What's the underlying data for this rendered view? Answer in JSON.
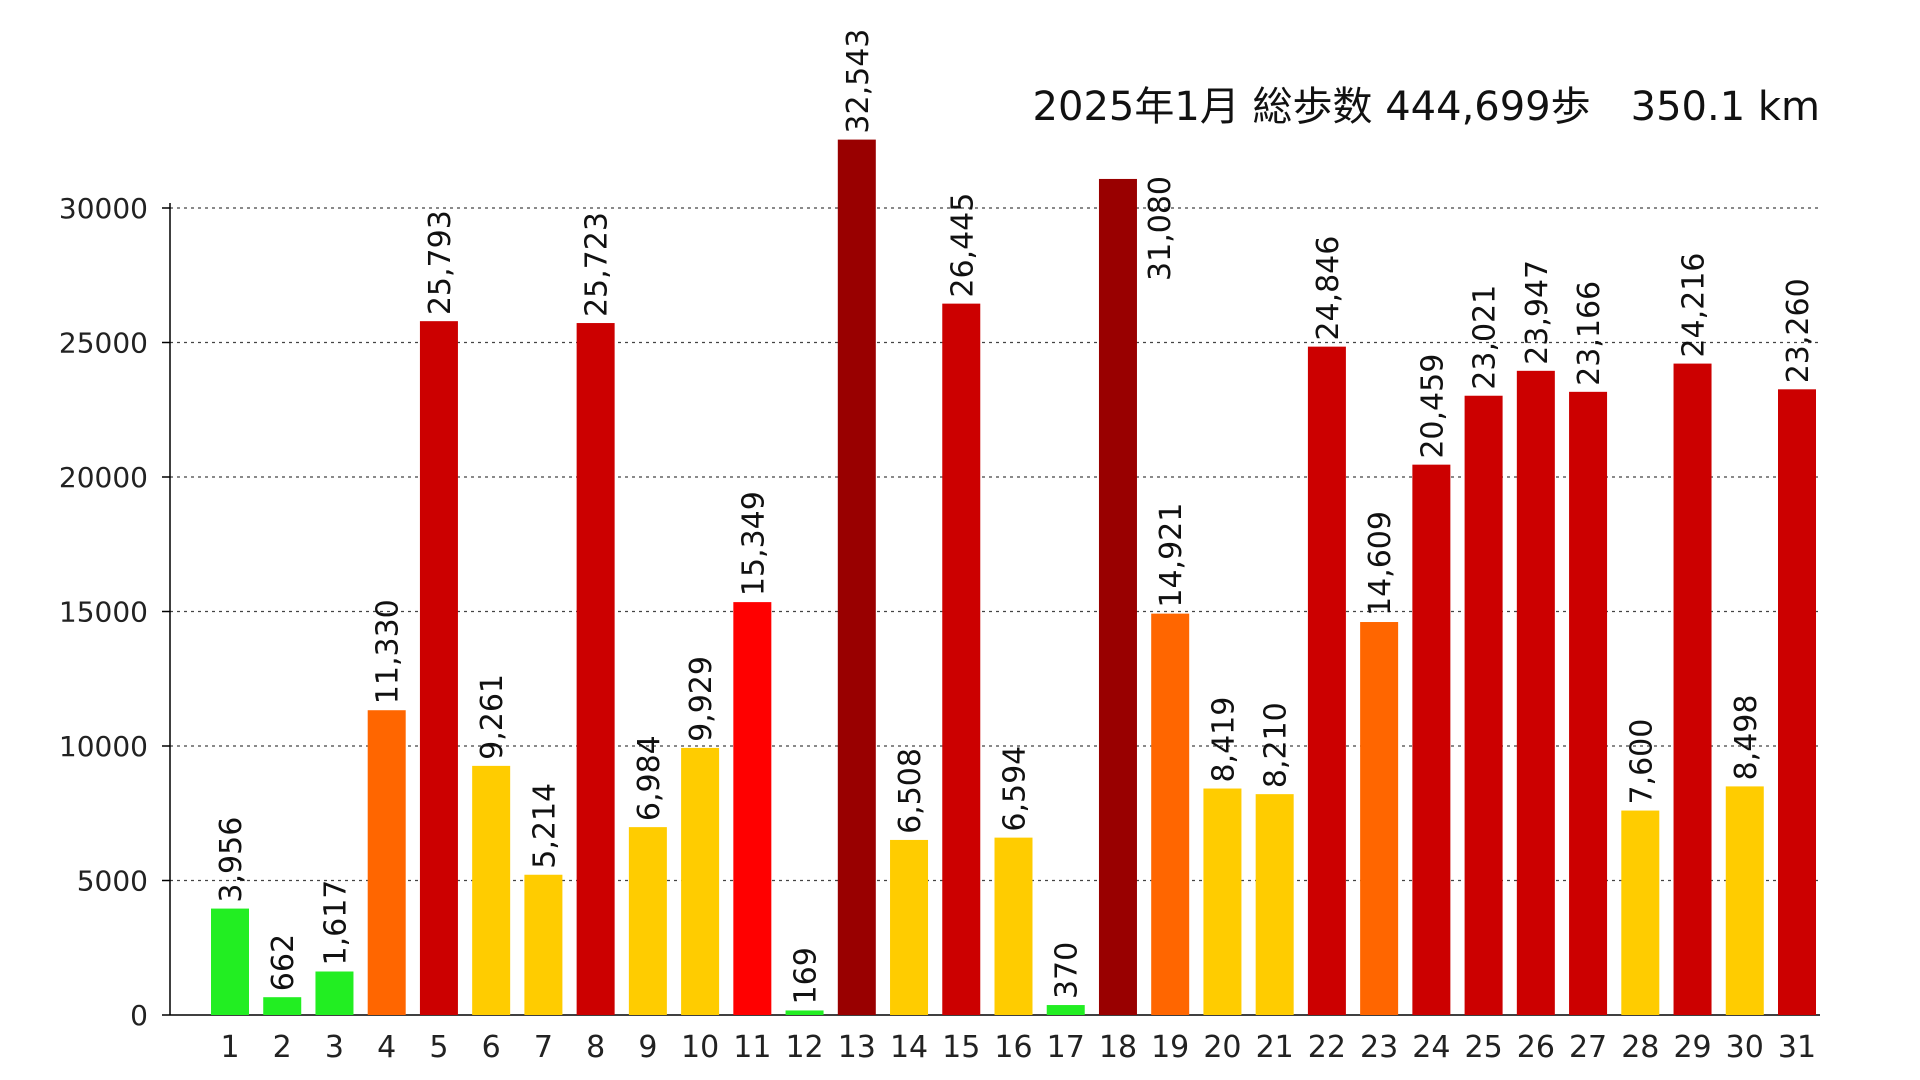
{
  "chart_data": {
    "type": "bar",
    "title": "2025年1月 総歩数 444,699歩　350.1 km",
    "xlabel": "",
    "ylabel": "",
    "ylim": [
      0,
      30000
    ],
    "yticks": [
      0,
      5000,
      10000,
      15000,
      20000,
      25000,
      30000
    ],
    "grid": "horizontal-dotted",
    "categories": [
      "1",
      "2",
      "3",
      "4",
      "5",
      "6",
      "7",
      "8",
      "9",
      "10",
      "11",
      "12",
      "13",
      "14",
      "15",
      "16",
      "17",
      "18",
      "19",
      "20",
      "21",
      "22",
      "23",
      "24",
      "25",
      "26",
      "27",
      "28",
      "29",
      "30",
      "31"
    ],
    "values": [
      3956,
      662,
      1617,
      11330,
      25793,
      9261,
      5214,
      25723,
      6984,
      9929,
      15349,
      169,
      32543,
      6508,
      26445,
      6594,
      370,
      31080,
      14921,
      8419,
      8210,
      24846,
      14609,
      20459,
      23021,
      23947,
      23166,
      7600,
      24216,
      8498,
      23260
    ],
    "data_labels": [
      "3,956",
      "662",
      "1,617",
      "11,330",
      "25,793",
      "9,261",
      "5,214",
      "25,723",
      "6,984",
      "9,929",
      "15,349",
      "169",
      "32,543",
      "6,508",
      "26,445",
      "6,594",
      "370",
      "31,080",
      "14,921",
      "8,419",
      "8,210",
      "24,846",
      "14,609",
      "20,459",
      "23,021",
      "23,947",
      "23,166",
      "7,600",
      "24,216",
      "8,498",
      "23,260"
    ],
    "colors": {
      "under_5000": "#22ee22",
      "under_10000": "#ffcc00",
      "under_15000": "#ff6600",
      "under_20000": "#ff0000",
      "under_30000": "#cc0000",
      "over_30000": "#990000"
    }
  }
}
